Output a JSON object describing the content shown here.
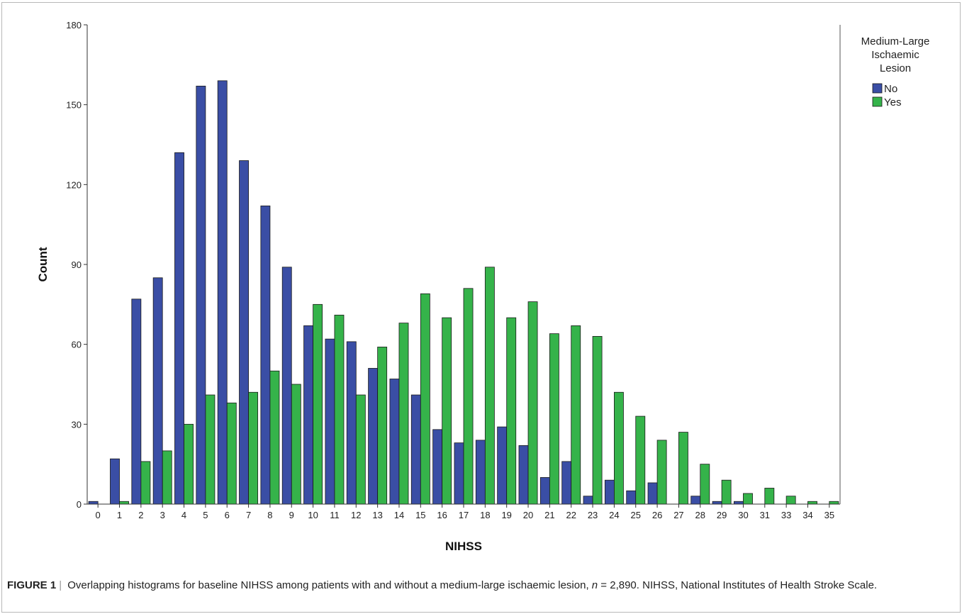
{
  "chart_data": {
    "type": "bar",
    "xlabel": "NIHSS",
    "ylabel": "Count",
    "ylim": [
      0,
      180
    ],
    "yticks": [
      0,
      30,
      60,
      90,
      120,
      150,
      180
    ],
    "grid": false,
    "legend_position": "right",
    "legend_title": [
      "Medium-Large",
      "Ischaemic",
      "Lesion"
    ],
    "categories": [
      "0",
      "1",
      "2",
      "3",
      "4",
      "5",
      "6",
      "7",
      "8",
      "9",
      "10",
      "11",
      "12",
      "13",
      "14",
      "15",
      "16",
      "17",
      "18",
      "19",
      "20",
      "21",
      "22",
      "23",
      "24",
      "25",
      "26",
      "27",
      "28",
      "29",
      "30",
      "31",
      "33",
      "34",
      "35"
    ],
    "series": [
      {
        "name": "No",
        "color": "#3a4ea5",
        "values": [
          1,
          17,
          77,
          85,
          132,
          157,
          159,
          129,
          112,
          89,
          67,
          62,
          61,
          51,
          47,
          41,
          28,
          23,
          24,
          29,
          22,
          10,
          16,
          3,
          9,
          5,
          8,
          0,
          3,
          1,
          1,
          0,
          0,
          0,
          0
        ]
      },
      {
        "name": "Yes",
        "color": "#35b34a",
        "values": [
          0,
          1,
          16,
          20,
          30,
          41,
          38,
          42,
          50,
          45,
          75,
          71,
          41,
          59,
          68,
          79,
          70,
          81,
          89,
          70,
          76,
          64,
          67,
          63,
          42,
          33,
          24,
          27,
          15,
          9,
          4,
          6,
          3,
          1,
          1
        ]
      }
    ]
  },
  "caption": {
    "label": "FIGURE 1",
    "separator": "|",
    "text_before_n": " Overlapping histograms for baseline NIHSS among patients with and without a medium-large ischaemic lesion, ",
    "n_var": "n",
    "text_after_n": " = 2,890. NIHSS, National Institutes of Health Stroke Scale."
  }
}
